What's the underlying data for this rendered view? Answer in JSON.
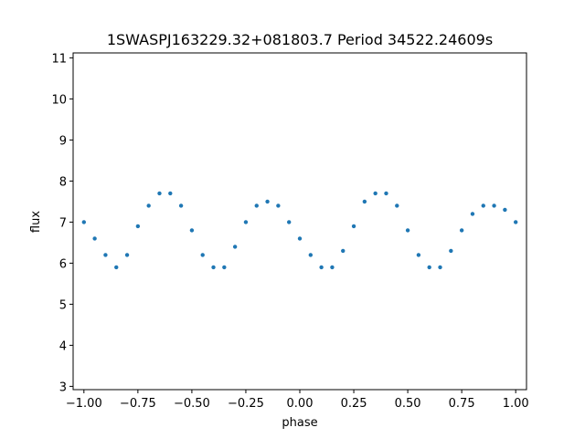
{
  "chart_data": {
    "type": "scatter",
    "title": "1SWASPJ163229.32+081803.7 Period 34522.24609s",
    "xlabel": "phase",
    "ylabel": "flux",
    "xlim": [
      -1.05,
      1.05
    ],
    "ylim": [
      2.92,
      11.12
    ],
    "x_ticks": [
      -1.0,
      -0.75,
      -0.5,
      -0.25,
      0.0,
      0.25,
      0.5,
      0.75,
      1.0
    ],
    "x_tick_labels": [
      "−1.00",
      "−0.75",
      "−0.50",
      "−0.25",
      "0.00",
      "0.25",
      "0.50",
      "0.75",
      "1.00"
    ],
    "y_ticks": [
      3,
      4,
      5,
      6,
      7,
      8,
      9,
      10,
      11
    ],
    "y_tick_labels": [
      "3",
      "4",
      "5",
      "6",
      "7",
      "8",
      "9",
      "10",
      "11"
    ],
    "grid": false,
    "legend": "none",
    "marker_color": "#1f77b4",
    "series": [
      {
        "x": [
          -1.0,
          -0.95,
          -0.9,
          -0.85,
          -0.8,
          -0.75,
          -0.7,
          -0.65,
          -0.6,
          -0.55,
          -0.5,
          -0.45,
          -0.4,
          -0.35,
          -0.3,
          -0.25,
          -0.2,
          -0.15,
          -0.1,
          -0.05,
          0.0,
          0.05,
          0.1,
          0.15,
          0.2,
          0.25,
          0.3,
          0.35,
          0.4,
          0.45,
          0.5,
          0.55,
          0.6,
          0.65,
          0.7,
          0.75,
          0.8,
          0.85,
          0.9,
          0.95,
          1.0
        ],
        "y": [
          7.0,
          6.6,
          6.2,
          5.9,
          6.2,
          6.9,
          7.4,
          7.7,
          7.7,
          7.4,
          6.8,
          6.2,
          5.9,
          5.9,
          6.4,
          7.0,
          7.4,
          7.5,
          7.4,
          7.0,
          6.6,
          6.2,
          5.9,
          5.9,
          6.3,
          6.9,
          7.5,
          7.7,
          7.7,
          7.4,
          6.8,
          6.2,
          5.9,
          5.9,
          6.3,
          6.8,
          7.2,
          7.4,
          7.4,
          7.3,
          7.0
        ]
      }
    ]
  }
}
